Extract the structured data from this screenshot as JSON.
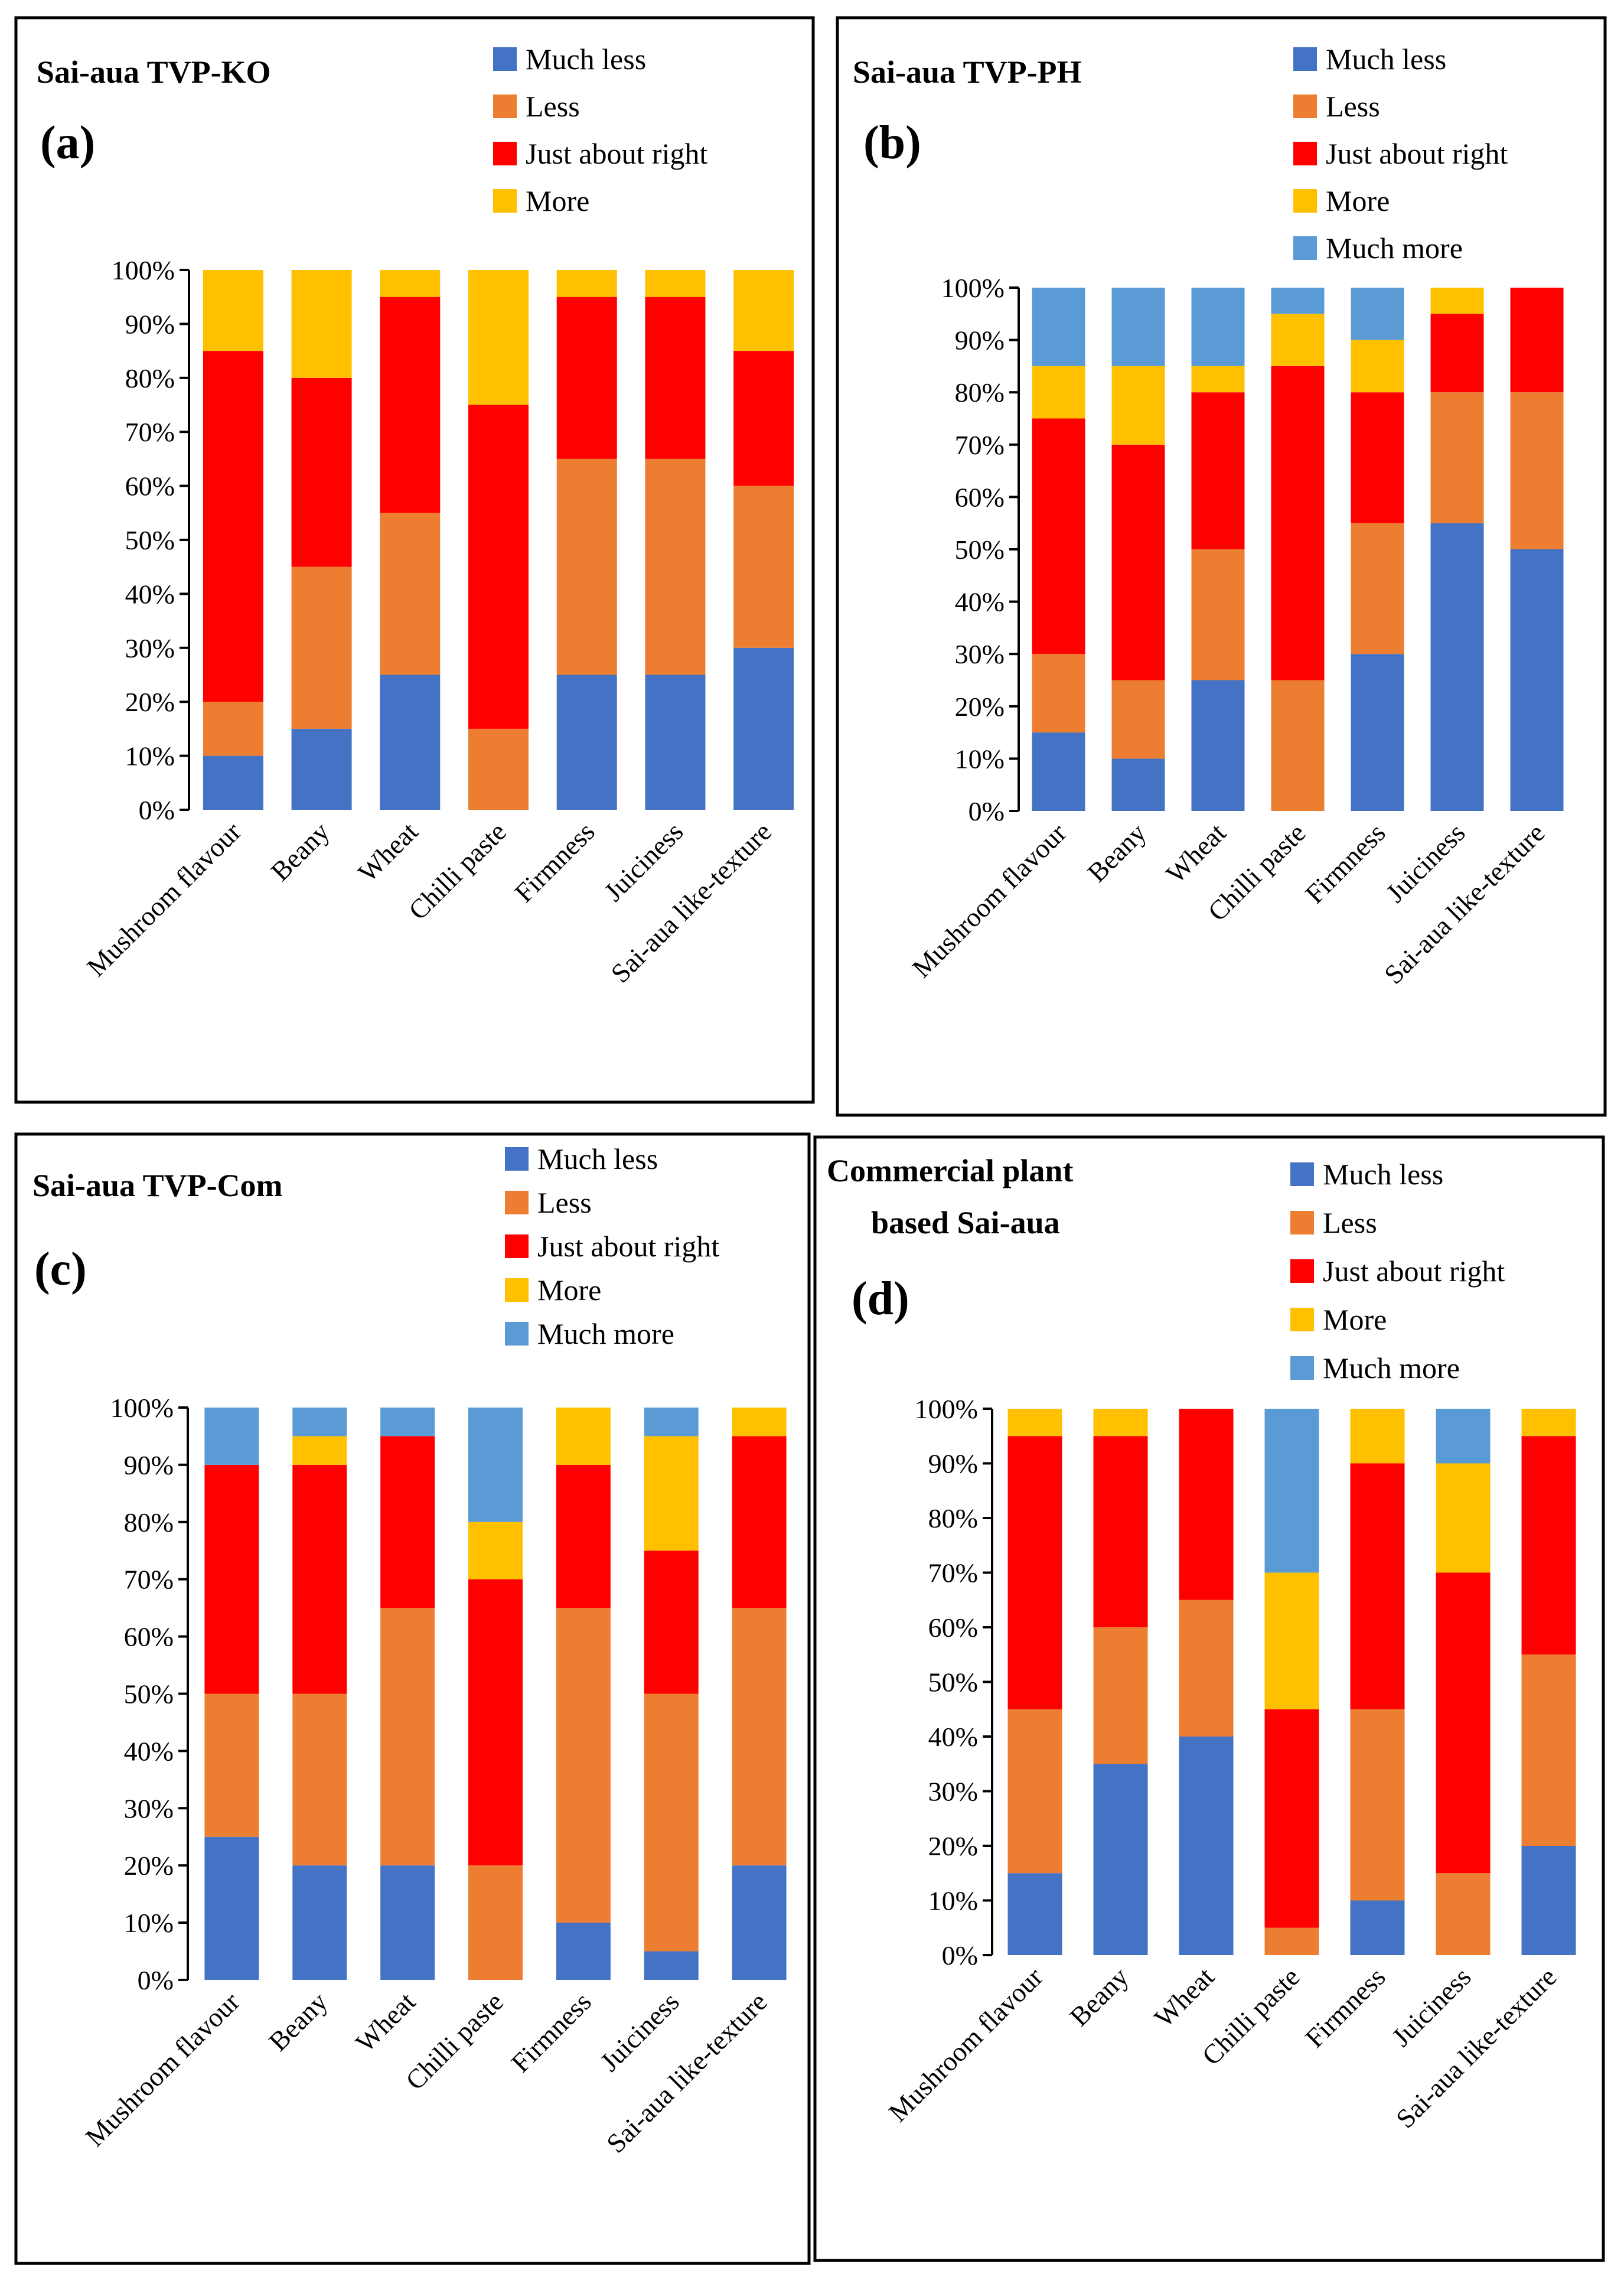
{
  "figure": {
    "categories": [
      "Mushroom flavour",
      "Beany",
      "Wheat",
      "Chilli paste",
      "Firmness",
      "Juiciness",
      "Sai-aua like-texture"
    ],
    "y_ticks": [
      "0%",
      "10%",
      "20%",
      "30%",
      "40%",
      "50%",
      "60%",
      "70%",
      "80%",
      "90%",
      "100%"
    ],
    "colors": {
      "much_less": "#4472C4",
      "less": "#ED7D31",
      "just_about_right": "#FF0000",
      "more": "#FFC000",
      "much_more": "#5B9BD5"
    }
  },
  "chart_data": [
    {
      "type": "bar",
      "stacked": true,
      "panel_label": "(a)",
      "title": "Sai-aua TVP-KO",
      "categories": [
        "Mushroom flavour",
        "Beany",
        "Wheat",
        "Chilli paste",
        "Firmness",
        "Juiciness",
        "Sai-aua like-texture"
      ],
      "series": [
        {
          "name": "Much less",
          "color": "#4472C4",
          "values": [
            10,
            15,
            25,
            0,
            25,
            25,
            30
          ]
        },
        {
          "name": "Less",
          "color": "#ED7D31",
          "values": [
            10,
            30,
            30,
            15,
            40,
            40,
            30
          ]
        },
        {
          "name": "Just about right",
          "color": "#FF0000",
          "values": [
            65,
            35,
            40,
            60,
            30,
            30,
            25
          ]
        },
        {
          "name": "More",
          "color": "#FFC000",
          "values": [
            15,
            20,
            5,
            25,
            5,
            5,
            15
          ]
        }
      ],
      "xlabel": "",
      "ylabel": "",
      "ylim": [
        0,
        100
      ]
    },
    {
      "type": "bar",
      "stacked": true,
      "panel_label": "(b)",
      "title": "Sai-aua TVP-PH",
      "categories": [
        "Mushroom flavour",
        "Beany",
        "Wheat",
        "Chilli paste",
        "Firmness",
        "Juiciness",
        "Sai-aua like-texture"
      ],
      "series": [
        {
          "name": "Much less",
          "color": "#4472C4",
          "values": [
            15,
            10,
            25,
            0,
            30,
            55,
            50
          ]
        },
        {
          "name": "Less",
          "color": "#ED7D31",
          "values": [
            15,
            15,
            25,
            25,
            25,
            25,
            30
          ]
        },
        {
          "name": "Just about right",
          "color": "#FF0000",
          "values": [
            45,
            45,
            30,
            60,
            25,
            15,
            20
          ]
        },
        {
          "name": "More",
          "color": "#FFC000",
          "values": [
            10,
            15,
            5,
            10,
            10,
            5,
            0
          ]
        },
        {
          "name": "Much more",
          "color": "#5B9BD5",
          "values": [
            15,
            15,
            15,
            5,
            10,
            0,
            0
          ]
        }
      ],
      "xlabel": "",
      "ylabel": "",
      "ylim": [
        0,
        100
      ]
    },
    {
      "type": "bar",
      "stacked": true,
      "panel_label": "(c)",
      "title": "Sai-aua TVP-Com",
      "categories": [
        "Mushroom flavour",
        "Beany",
        "Wheat",
        "Chilli paste",
        "Firmness",
        "Juiciness",
        "Sai-aua like-texture"
      ],
      "series": [
        {
          "name": "Much less",
          "color": "#4472C4",
          "values": [
            25,
            20,
            20,
            0,
            10,
            5,
            20
          ]
        },
        {
          "name": "Less",
          "color": "#ED7D31",
          "values": [
            25,
            30,
            45,
            20,
            55,
            45,
            45
          ]
        },
        {
          "name": "Just about right",
          "color": "#FF0000",
          "values": [
            40,
            40,
            30,
            50,
            25,
            25,
            30
          ]
        },
        {
          "name": "More",
          "color": "#FFC000",
          "values": [
            0,
            5,
            0,
            10,
            10,
            20,
            5
          ]
        },
        {
          "name": "Much more",
          "color": "#5B9BD5",
          "values": [
            10,
            5,
            5,
            20,
            0,
            5,
            0
          ]
        }
      ],
      "xlabel": "",
      "ylabel": "",
      "ylim": [
        0,
        100
      ]
    },
    {
      "type": "bar",
      "stacked": true,
      "panel_label": "(d)",
      "title": "Commercial plant based Sai-aua",
      "title_lines": [
        "Commercial plant",
        "based Sai-aua"
      ],
      "categories": [
        "Mushroom flavour",
        "Beany",
        "Wheat",
        "Chilli paste",
        "Firmness",
        "Juiciness",
        "Sai-aua like-texture"
      ],
      "series": [
        {
          "name": "Much less",
          "color": "#4472C4",
          "values": [
            15,
            35,
            40,
            0,
            10,
            0,
            20
          ]
        },
        {
          "name": "Less",
          "color": "#ED7D31",
          "values": [
            30,
            25,
            25,
            5,
            35,
            15,
            35
          ]
        },
        {
          "name": "Just about right",
          "color": "#FF0000",
          "values": [
            50,
            35,
            35,
            40,
            45,
            55,
            40
          ]
        },
        {
          "name": "More",
          "color": "#FFC000",
          "values": [
            5,
            5,
            0,
            25,
            10,
            20,
            5
          ]
        },
        {
          "name": "Much more",
          "color": "#5B9BD5",
          "values": [
            0,
            0,
            0,
            30,
            0,
            10,
            0
          ]
        }
      ],
      "xlabel": "",
      "ylabel": "",
      "ylim": [
        0,
        100
      ]
    }
  ]
}
